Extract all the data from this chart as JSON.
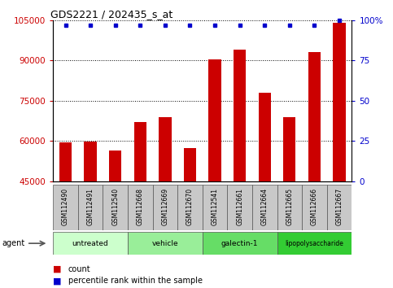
{
  "title": "GDS2221 / 202435_s_at",
  "samples": [
    "GSM112490",
    "GSM112491",
    "GSM112540",
    "GSM112668",
    "GSM112669",
    "GSM112670",
    "GSM112541",
    "GSM112661",
    "GSM112664",
    "GSM112665",
    "GSM112666",
    "GSM112667"
  ],
  "counts": [
    59500,
    59800,
    56500,
    67000,
    69000,
    57500,
    90500,
    94000,
    78000,
    69000,
    93000,
    104000
  ],
  "percentile_ranks": [
    97,
    97,
    97,
    97,
    97,
    97,
    97,
    97,
    97,
    97,
    97,
    100
  ],
  "ylim_left": [
    45000,
    105000
  ],
  "ylim_right": [
    0,
    100
  ],
  "yticks_left": [
    45000,
    60000,
    75000,
    90000,
    105000
  ],
  "yticks_right": [
    0,
    25,
    50,
    75,
    100
  ],
  "ytick_labels_left": [
    "45000",
    "60000",
    "75000",
    "90000",
    "105000"
  ],
  "ytick_labels_right": [
    "0",
    "25",
    "50",
    "75",
    "100%"
  ],
  "bar_color": "#cc0000",
  "dot_color": "#0000cc",
  "bar_width": 0.5,
  "groups": [
    {
      "label": "untreated",
      "start": 0,
      "end": 3,
      "color": "#ccffcc"
    },
    {
      "label": "vehicle",
      "start": 3,
      "end": 6,
      "color": "#99ee99"
    },
    {
      "label": "galectin-1",
      "start": 6,
      "end": 9,
      "color": "#66dd66"
    },
    {
      "label": "lipopolysaccharide",
      "start": 9,
      "end": 12,
      "color": "#33cc33"
    }
  ],
  "agent_label": "agent",
  "legend_count_label": "count",
  "legend_percentile_label": "percentile rank within the sample",
  "background_color": "#ffffff",
  "tick_area_color": "#c8c8c8"
}
